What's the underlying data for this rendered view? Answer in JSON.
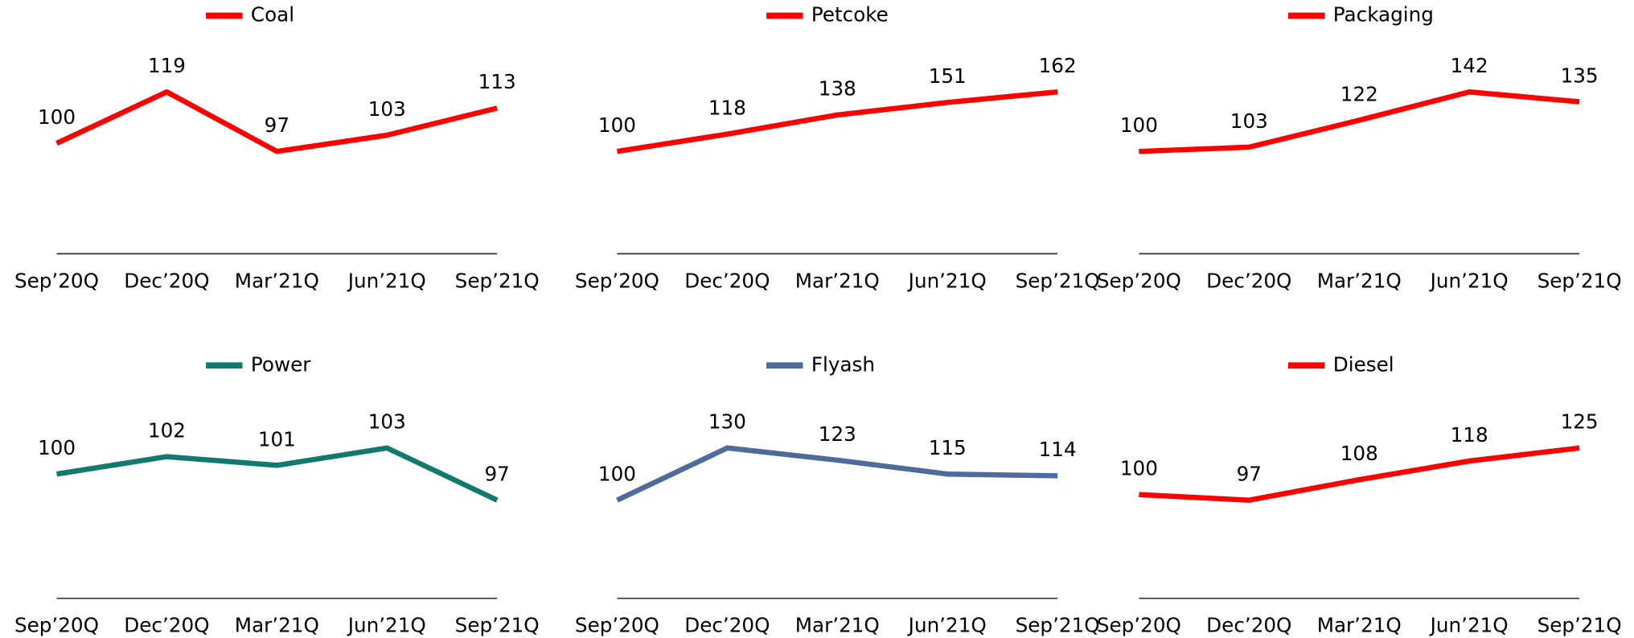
{
  "chart_data": [
    {
      "type": "line",
      "categories": [
        "Sep’20Q",
        "Dec’20Q",
        "Mar’21Q",
        "Jun’21Q",
        "Sep’21Q"
      ],
      "series": [
        {
          "name": "Coal",
          "color": "#ff0000",
          "values": [
            100,
            119,
            97,
            103,
            113
          ]
        }
      ]
    },
    {
      "type": "line",
      "categories": [
        "Sep’20Q",
        "Dec’20Q",
        "Mar’21Q",
        "Jun’21Q",
        "Sep’21Q"
      ],
      "series": [
        {
          "name": "Petcoke",
          "color": "#ff0000",
          "values": [
            100,
            118,
            138,
            151,
            162
          ]
        }
      ]
    },
    {
      "type": "line",
      "categories": [
        "Sep’20Q",
        "Dec’20Q",
        "Mar’21Q",
        "Jun’21Q",
        "Sep’21Q"
      ],
      "series": [
        {
          "name": "Packaging",
          "color": "#ff0000",
          "values": [
            100,
            103,
            122,
            142,
            135
          ]
        }
      ]
    },
    {
      "type": "line",
      "categories": [
        "Sep’20Q",
        "Dec’20Q",
        "Mar’21Q",
        "Jun’21Q",
        "Sep’21Q"
      ],
      "series": [
        {
          "name": "Power",
          "color": "#117a6d",
          "values": [
            100,
            102,
            101,
            103,
            97
          ]
        }
      ]
    },
    {
      "type": "line",
      "categories": [
        "Sep’20Q",
        "Dec’20Q",
        "Mar’21Q",
        "Jun’21Q",
        "Sep’21Q"
      ],
      "series": [
        {
          "name": "Flyash",
          "color": "#4e6b9c",
          "values": [
            100,
            130,
            123,
            115,
            114
          ]
        }
      ]
    },
    {
      "type": "line",
      "categories": [
        "Sep’20Q",
        "Dec’20Q",
        "Mar’21Q",
        "Jun’21Q",
        "Sep’21Q"
      ],
      "series": [
        {
          "name": "Diesel",
          "color": "#ff0000",
          "values": [
            100,
            97,
            108,
            118,
            125
          ]
        }
      ]
    }
  ]
}
